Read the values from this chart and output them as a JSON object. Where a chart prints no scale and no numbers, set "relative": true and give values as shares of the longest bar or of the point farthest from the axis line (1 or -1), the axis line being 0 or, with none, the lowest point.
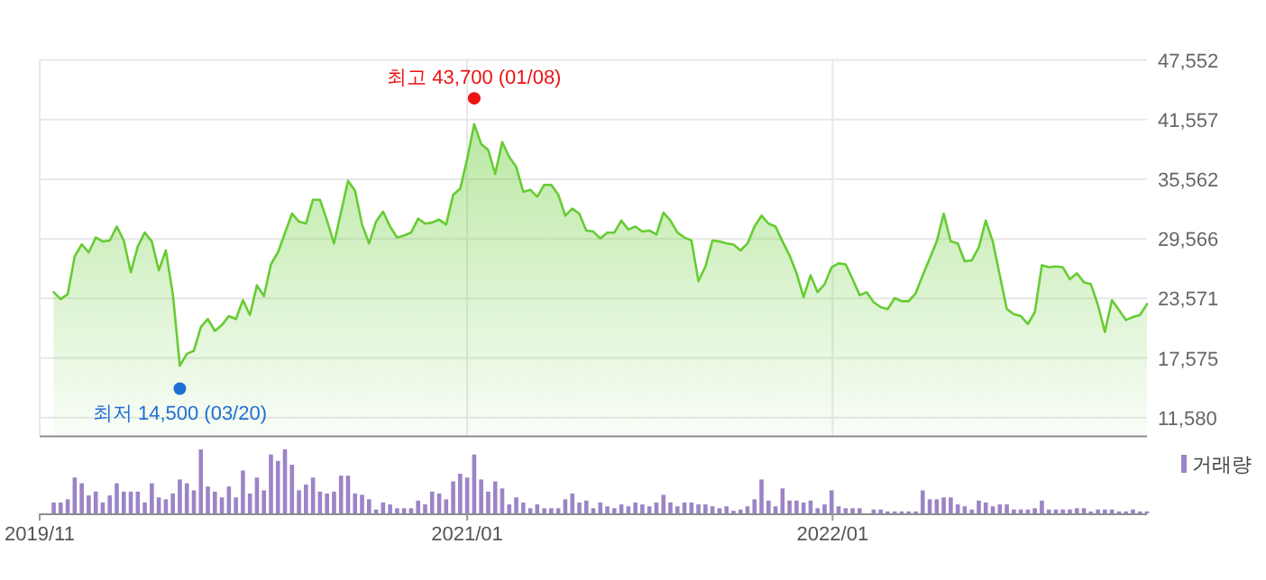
{
  "chart_data": [
    {
      "type": "area",
      "grid": true,
      "tick_labels": "y",
      "x": [
        "2019-11-15",
        "2019-11-22",
        "2019-11-29",
        "2019-12-06",
        "2019-12-13",
        "2019-12-20",
        "2019-12-27",
        "2020-01-03",
        "2020-01-10",
        "2020-01-17",
        "2020-01-24",
        "2020-01-31",
        "2020-02-07",
        "2020-02-14",
        "2020-02-21",
        "2020-02-28",
        "2020-03-06",
        "2020-03-13",
        "2020-03-20",
        "2020-03-27",
        "2020-04-03",
        "2020-04-10",
        "2020-04-17",
        "2020-04-24",
        "2020-05-01",
        "2020-05-08",
        "2020-05-15",
        "2020-05-22",
        "2020-05-29",
        "2020-06-05",
        "2020-06-12",
        "2020-06-19",
        "2020-06-26",
        "2020-07-10",
        "2020-07-17",
        "2020-07-24",
        "2020-07-31",
        "2020-08-07",
        "2020-08-14",
        "2020-08-21",
        "2020-09-04",
        "2020-09-11",
        "2020-09-18",
        "2020-09-25",
        "2020-10-02",
        "2020-10-09",
        "2020-10-16",
        "2020-10-23",
        "2020-10-30",
        "2020-11-06",
        "2020-11-13",
        "2020-11-20",
        "2020-11-27",
        "2020-12-04",
        "2020-12-11",
        "2020-12-18",
        "2020-12-25",
        "2021-01-01",
        "2021-01-08",
        "2021-01-15",
        "2021-01-22",
        "2021-01-29",
        "2021-02-05",
        "2021-02-12",
        "2021-02-19",
        "2021-02-26",
        "2021-03-05",
        "2021-03-12",
        "2021-03-19",
        "2021-03-26",
        "2021-04-02",
        "2021-04-09",
        "2021-04-16",
        "2021-04-23",
        "2021-04-30",
        "2021-05-07",
        "2021-05-14",
        "2021-05-21",
        "2021-05-28",
        "2021-06-04",
        "2021-06-11",
        "2021-06-18",
        "2021-06-25",
        "2021-07-02",
        "2021-07-09",
        "2021-07-16",
        "2021-07-23",
        "2021-07-30",
        "2021-08-06",
        "2021-08-13",
        "2021-08-20",
        "2021-08-27",
        "2021-09-03",
        "2021-09-10",
        "2021-09-17",
        "2021-09-24",
        "2021-10-01",
        "2021-10-08",
        "2021-10-15",
        "2021-10-22",
        "2021-10-29",
        "2021-11-05",
        "2021-11-12",
        "2021-11-19",
        "2021-11-26",
        "2021-12-03",
        "2021-12-10",
        "2021-12-17",
        "2021-12-24",
        "2021-12-31",
        "2022-01-07",
        "2022-01-14",
        "2022-01-21",
        "2022-01-28",
        "2022-02-04",
        "2022-02-11",
        "2022-02-18",
        "2022-02-25",
        "2022-03-04",
        "2022-03-11",
        "2022-03-18",
        "2022-03-25",
        "2022-04-01",
        "2022-04-08",
        "2022-04-15",
        "2022-04-22",
        "2022-04-29",
        "2022-05-06",
        "2022-05-13",
        "2022-05-20",
        "2022-05-27",
        "2022-06-03",
        "2022-06-10",
        "2022-06-17",
        "2022-06-24",
        "2022-07-01",
        "2022-07-08",
        "2022-07-15",
        "2022-07-22",
        "2022-07-29",
        "2022-08-05",
        "2022-08-12",
        "2022-08-19",
        "2022-08-26",
        "2022-09-02",
        "2022-09-09",
        "2022-09-16",
        "2022-09-23",
        "2022-09-30",
        "2022-10-07",
        "2022-10-14",
        "2022-10-21",
        "2022-10-28",
        "2022-11-04",
        "2022-11-11"
      ],
      "series": [
        {
          "color": "#66cc33",
          "values": [
            24200,
            23500,
            24000,
            27800,
            29000,
            28200,
            29700,
            29300,
            29400,
            30800,
            29400,
            26200,
            28800,
            30200,
            29300,
            26400,
            28400,
            24000,
            16800,
            18000,
            18300,
            20700,
            21500,
            20300,
            20900,
            21800,
            21500,
            23400,
            21900,
            24900,
            23800,
            27000,
            28200,
            32100,
            31300,
            31100,
            33500,
            33500,
            31400,
            29100,
            35400,
            34400,
            31000,
            29100,
            31300,
            32300,
            30800,
            29700,
            29900,
            30200,
            31600,
            31100,
            31200,
            31500,
            31000,
            34000,
            34600,
            37600,
            41100,
            39100,
            38500,
            36100,
            39300,
            37800,
            36800,
            34300,
            34500,
            33800,
            35000,
            35000,
            34000,
            31900,
            32600,
            32100,
            30400,
            30300,
            29600,
            30200,
            30200,
            31400,
            30500,
            30800,
            30300,
            30400,
            30000,
            32200,
            31400,
            30200,
            29700,
            29400,
            25300,
            26800,
            29400,
            29300,
            29100,
            29000,
            28400,
            29100,
            30800,
            31900,
            31100,
            30800,
            29300,
            27900,
            26100,
            23700,
            25900,
            24200,
            25000,
            26700,
            27100,
            27000,
            25500,
            23900,
            24200,
            23200,
            22700,
            22500,
            23600,
            23300,
            23300,
            24100,
            25900,
            27600,
            29300,
            32100,
            29300,
            29100,
            27300,
            27400,
            28700,
            31400,
            29300,
            25900,
            22500,
            22000,
            21800,
            21000,
            22200,
            26900,
            26700,
            26800,
            26700,
            25500,
            26100,
            25200,
            25000,
            22900,
            20200,
            23400,
            22400,
            21400,
            21700,
            21900,
            23000
          ]
        },
        {
          "type": "scatter",
          "x": [
            "2021-01-08",
            "2020-03-20"
          ],
          "values": [
            43700,
            14500
          ],
          "colors": [
            "#ee1111",
            "#1f6fd6"
          ]
        }
      ],
      "xlim": [
        "2019-11-01",
        "2022-11-11"
      ],
      "xticks": [
        {
          "value": "2019-11",
          "label": null
        },
        {
          "value": "2021-01",
          "label": null
        },
        {
          "value": "2022-01",
          "label": null
        }
      ],
      "ylim": [
        9800,
        47552
      ],
      "yticks": [
        {
          "value": 11580,
          "label": "11,580"
        },
        {
          "value": 17575,
          "label": "17,575"
        },
        {
          "value": 23571,
          "label": "23,571"
        },
        {
          "value": 29566,
          "label": "29,566"
        },
        {
          "value": 35562,
          "label": "35,562"
        },
        {
          "value": 41557,
          "label": "41,557"
        },
        {
          "value": 47552,
          "label": "47,552"
        }
      ],
      "annotations": [
        {
          "text": "최고 43,700 (01/08)",
          "x": "2021-01-08",
          "y": 43700
        },
        {
          "text": "최저 14,500 (03/20)",
          "x": "2020-03-20",
          "y": 14500
        }
      ]
    },
    {
      "type": "bar",
      "relative": true,
      "legend": "top right",
      "tick_labels": "x",
      "x": [
        "2019-11-15",
        "2019-11-22",
        "2019-11-29",
        "2019-12-06",
        "2019-12-13",
        "2019-12-20",
        "2019-12-27",
        "2020-01-03",
        "2020-01-10",
        "2020-01-17",
        "2020-01-24",
        "2020-01-31",
        "2020-02-07",
        "2020-02-14",
        "2020-02-21",
        "2020-02-28",
        "2020-03-06",
        "2020-03-13",
        "2020-03-20",
        "2020-03-27",
        "2020-04-03",
        "2020-04-10",
        "2020-04-17",
        "2020-04-24",
        "2020-05-01",
        "2020-05-08",
        "2020-05-15",
        "2020-05-22",
        "2020-05-29",
        "2020-06-05",
        "2020-06-12",
        "2020-06-19",
        "2020-06-26",
        "2020-07-03",
        "2020-07-10",
        "2020-07-17",
        "2020-07-24",
        "2020-07-31",
        "2020-08-07",
        "2020-08-14",
        "2020-08-21",
        "2020-08-28",
        "2020-09-04",
        "2020-09-11",
        "2020-09-18",
        "2020-09-25",
        "2020-10-02",
        "2020-10-09",
        "2020-10-16",
        "2020-10-23",
        "2020-10-30",
        "2020-11-06",
        "2020-11-13",
        "2020-11-20",
        "2020-11-27",
        "2020-12-04",
        "2020-12-11",
        "2020-12-18",
        "2020-12-25",
        "2021-01-01",
        "2021-01-08",
        "2021-01-15",
        "2021-01-22",
        "2021-01-29",
        "2021-02-05",
        "2021-02-12",
        "2021-02-19",
        "2021-02-26",
        "2021-03-05",
        "2021-03-12",
        "2021-03-19",
        "2021-03-26",
        "2021-04-02",
        "2021-04-09",
        "2021-04-16",
        "2021-04-23",
        "2021-04-30",
        "2021-05-07",
        "2021-05-14",
        "2021-05-21",
        "2021-05-28",
        "2021-06-04",
        "2021-06-11",
        "2021-06-18",
        "2021-06-25",
        "2021-07-02",
        "2021-07-09",
        "2021-07-16",
        "2021-07-23",
        "2021-07-30",
        "2021-08-06",
        "2021-08-13",
        "2021-08-20",
        "2021-08-27",
        "2021-09-03",
        "2021-09-10",
        "2021-09-17",
        "2021-09-24",
        "2021-10-01",
        "2021-10-08",
        "2021-10-15",
        "2021-10-22",
        "2021-10-29",
        "2021-11-05",
        "2021-11-12",
        "2021-11-19",
        "2021-11-26",
        "2021-12-03",
        "2021-12-10",
        "2021-12-17",
        "2021-12-24",
        "2021-12-31",
        "2022-01-07",
        "2022-01-14",
        "2022-01-21",
        "2022-01-28",
        "2022-02-04",
        "2022-02-11",
        "2022-02-18",
        "2022-02-25",
        "2022-03-04",
        "2022-03-11",
        "2022-03-18",
        "2022-03-25",
        "2022-04-01",
        "2022-04-08",
        "2022-04-15",
        "2022-04-22",
        "2022-04-29",
        "2022-05-06",
        "2022-05-13",
        "2022-05-20",
        "2022-05-27",
        "2022-06-03",
        "2022-06-10",
        "2022-06-17",
        "2022-06-24",
        "2022-07-01",
        "2022-07-08",
        "2022-07-15",
        "2022-07-22",
        "2022-07-29",
        "2022-08-05",
        "2022-08-12",
        "2022-08-19",
        "2022-08-26",
        "2022-09-02",
        "2022-09-09",
        "2022-09-16",
        "2022-09-23",
        "2022-09-30",
        "2022-10-07",
        "2022-10-14",
        "2022-10-21",
        "2022-10-28",
        "2022-11-04",
        "2022-11-11"
      ],
      "series": [
        {
          "name": "거래량",
          "color": "#9b84c6",
          "values": [
            0.17,
            0.17,
            0.22,
            0.56,
            0.47,
            0.28,
            0.34,
            0.17,
            0.28,
            0.47,
            0.34,
            0.34,
            0.34,
            0.17,
            0.47,
            0.25,
            0.22,
            0.31,
            0.53,
            0.47,
            0.36,
            1,
            0.42,
            0.34,
            0.25,
            0.42,
            0.25,
            0.67,
            0.31,
            0.56,
            0.36,
            0.92,
            0.82,
            1,
            0.76,
            0.36,
            0.45,
            0.56,
            0.34,
            0.31,
            0.34,
            0.59,
            0.59,
            0.31,
            0.29,
            0.22,
            0.06,
            0.17,
            0.14,
            0.08,
            0.08,
            0.08,
            0.2,
            0.14,
            0.34,
            0.31,
            0.22,
            0.5,
            0.62,
            0.56,
            0.92,
            0.53,
            0.34,
            0.5,
            0.39,
            0.14,
            0.25,
            0.17,
            0.08,
            0.14,
            0.08,
            0.08,
            0.08,
            0.22,
            0.31,
            0.17,
            0.2,
            0.08,
            0.17,
            0.11,
            0.08,
            0.14,
            0.11,
            0.17,
            0.14,
            0.11,
            0.17,
            0.29,
            0.17,
            0.11,
            0.17,
            0.17,
            0.14,
            0.14,
            0.11,
            0.08,
            0.11,
            0.04,
            0.06,
            0.11,
            0.22,
            0.53,
            0.2,
            0.11,
            0.39,
            0.2,
            0.2,
            0.17,
            0.2,
            0.08,
            0.14,
            0.36,
            0.11,
            0.08,
            0.08,
            0.08,
            null,
            0.06,
            0.06,
            0.03,
            0.03,
            0.03,
            0.03,
            0.03,
            0.36,
            0.22,
            0.22,
            0.25,
            0.25,
            0.14,
            0.11,
            0.06,
            0.2,
            0.17,
            0.11,
            0.14,
            0.14,
            0.06,
            0.06,
            0.06,
            0.08,
            0.2,
            0.06,
            0.06,
            0.06,
            0.06,
            0.08,
            0.08,
            0.03,
            0.06,
            0.06,
            0.06,
            0.03,
            0.03,
            0.06,
            0.03,
            0.03
          ]
        }
      ],
      "xlim": [
        "2019-11-01",
        "2022-11-11"
      ],
      "xticks": [
        {
          "value": "2019-11",
          "label": "2019/11"
        },
        {
          "value": "2021-01",
          "label": "2021/01"
        },
        {
          "value": "2022-01",
          "label": "2022/01"
        }
      ]
    }
  ]
}
